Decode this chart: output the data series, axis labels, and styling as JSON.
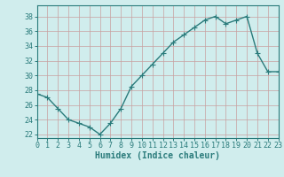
{
  "x": [
    0,
    1,
    2,
    3,
    4,
    5,
    6,
    7,
    8,
    9,
    10,
    11,
    12,
    13,
    14,
    15,
    16,
    17,
    18,
    19,
    20,
    21,
    22,
    23
  ],
  "y": [
    27.5,
    27.0,
    25.5,
    24.0,
    23.5,
    23.0,
    22.0,
    23.5,
    25.5,
    28.5,
    30.0,
    31.5,
    33.0,
    34.5,
    35.5,
    36.5,
    37.5,
    38.0,
    37.0,
    37.5,
    38.0,
    33.0,
    30.5,
    30.5
  ],
  "xlim": [
    0,
    23
  ],
  "ylim": [
    21.5,
    39.5
  ],
  "yticks": [
    22,
    24,
    26,
    28,
    30,
    32,
    34,
    36,
    38
  ],
  "xticks": [
    0,
    1,
    2,
    3,
    4,
    5,
    6,
    7,
    8,
    9,
    10,
    11,
    12,
    13,
    14,
    15,
    16,
    17,
    18,
    19,
    20,
    21,
    22,
    23
  ],
  "xlabel": "Humidex (Indice chaleur)",
  "bg_color": "#d0eded",
  "line_color": "#2a7b7b",
  "grid_color": "#c8a0a0",
  "marker": "+",
  "marker_size": 4,
  "line_width": 1.0,
  "xlabel_fontsize": 7,
  "tick_fontsize": 6,
  "ytick_labels": [
    "22",
    "24",
    "26",
    "28",
    "30",
    "32",
    "34",
    "36",
    "38"
  ]
}
